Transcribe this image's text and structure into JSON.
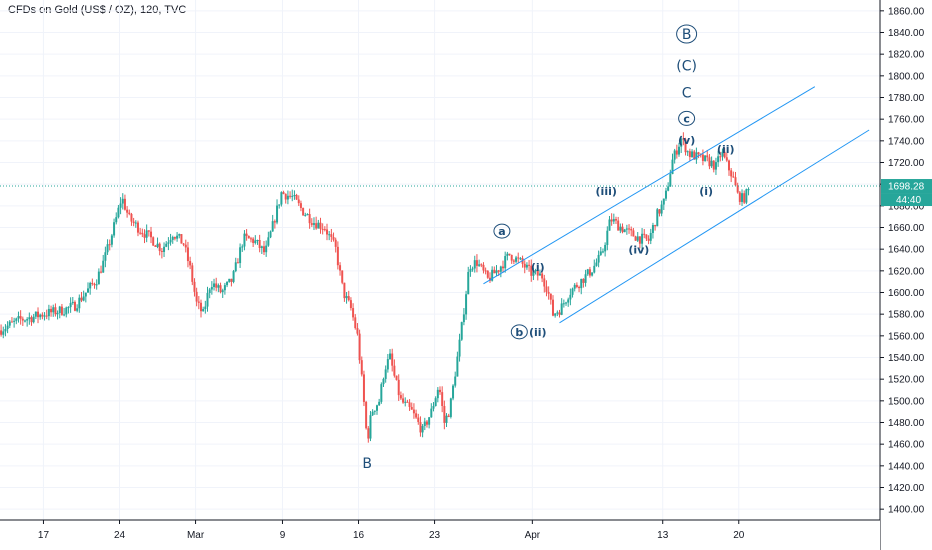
{
  "header": {
    "title": "CFDs on Gold (US$ / OZ), 120, TVC"
  },
  "price_badge": {
    "value": "1698.28",
    "countdown": "44:40",
    "color": "#26a69a"
  },
  "colors": {
    "up": "#26a69a",
    "down": "#ef5350",
    "channel": "#2196f3",
    "label": "#1e4e79",
    "grid": "#f0f3fa"
  },
  "chart_data": {
    "type": "candlestick",
    "title": "CFDs on Gold (US$ / OZ), 120, TVC",
    "ylim": [
      1390,
      1870
    ],
    "y_ticks": [
      1400,
      1420,
      1440,
      1460,
      1480,
      1500,
      1520,
      1540,
      1560,
      1580,
      1600,
      1620,
      1640,
      1660,
      1680,
      1700,
      1720,
      1740,
      1760,
      1780,
      1800,
      1820,
      1840,
      1860
    ],
    "x_ticks": [
      {
        "label": "17",
        "day": 17
      },
      {
        "label": "24",
        "day": 24
      },
      {
        "label": "Mar",
        "day": 31
      },
      {
        "label": "9",
        "day": 39
      },
      {
        "label": "16",
        "day": 46
      },
      {
        "label": "23",
        "day": 53
      },
      {
        "label": "Apr",
        "day": 62
      },
      {
        "label": "13",
        "day": 74
      },
      {
        "label": "20",
        "day": 81
      }
    ],
    "xlim": [
      13,
      94
    ],
    "price_path": [
      [
        13.0,
        1565
      ],
      [
        14.0,
        1570
      ],
      [
        15.0,
        1575
      ],
      [
        16.0,
        1577
      ],
      [
        17.0,
        1580
      ],
      [
        18.0,
        1582
      ],
      [
        19.0,
        1584
      ],
      [
        20.0,
        1588
      ],
      [
        21.0,
        1600
      ],
      [
        22.0,
        1612
      ],
      [
        22.7,
        1630
      ],
      [
        23.3,
        1650
      ],
      [
        23.9,
        1672
      ],
      [
        24.3,
        1688
      ],
      [
        25.0,
        1668
      ],
      [
        26.0,
        1658
      ],
      [
        27.0,
        1650
      ],
      [
        28.0,
        1640
      ],
      [
        29.0,
        1655
      ],
      [
        30.0,
        1645
      ],
      [
        30.6,
        1622
      ],
      [
        31.2,
        1590
      ],
      [
        31.8,
        1580
      ],
      [
        32.5,
        1610
      ],
      [
        33.5,
        1600
      ],
      [
        34.5,
        1612
      ],
      [
        35.5,
        1650
      ],
      [
        36.5,
        1648
      ],
      [
        37.5,
        1636
      ],
      [
        38.3,
        1665
      ],
      [
        39.0,
        1692
      ],
      [
        40.0,
        1688
      ],
      [
        41.0,
        1675
      ],
      [
        42.0,
        1665
      ],
      [
        43.0,
        1660
      ],
      [
        44.0,
        1640
      ],
      [
        44.7,
        1600
      ],
      [
        45.4,
        1585
      ],
      [
        46.0,
        1560
      ],
      [
        46.5,
        1510
      ],
      [
        46.9,
        1462
      ],
      [
        47.3,
        1490
      ],
      [
        48.0,
        1500
      ],
      [
        48.5,
        1530
      ],
      [
        49.0,
        1540
      ],
      [
        49.5,
        1518
      ],
      [
        50.0,
        1500
      ],
      [
        51.0,
        1490
      ],
      [
        52.0,
        1472
      ],
      [
        52.8,
        1490
      ],
      [
        53.5,
        1515
      ],
      [
        54.0,
        1480
      ],
      [
        54.5,
        1492
      ],
      [
        55.5,
        1560
      ],
      [
        56.3,
        1625
      ],
      [
        57.0,
        1628
      ],
      [
        58.0,
        1612
      ],
      [
        59.0,
        1622
      ],
      [
        60.0,
        1635
      ],
      [
        61.0,
        1628
      ],
      [
        62.0,
        1618
      ],
      [
        63.0,
        1615
      ],
      [
        63.5,
        1603
      ],
      [
        64.0,
        1580
      ],
      [
        64.7,
        1585
      ],
      [
        65.5,
        1600
      ],
      [
        66.5,
        1610
      ],
      [
        67.5,
        1620
      ],
      [
        68.5,
        1635
      ],
      [
        69.3,
        1668
      ],
      [
        70.0,
        1662
      ],
      [
        71.0,
        1655
      ],
      [
        72.0,
        1650
      ],
      [
        72.8,
        1648
      ],
      [
        73.6,
        1672
      ],
      [
        74.3,
        1685
      ],
      [
        75.0,
        1722
      ],
      [
        75.8,
        1742
      ],
      [
        76.5,
        1728
      ],
      [
        77.5,
        1724
      ],
      [
        78.5,
        1720
      ],
      [
        79.0,
        1716
      ],
      [
        79.5,
        1730
      ],
      [
        80.0,
        1718
      ],
      [
        80.5,
        1708
      ],
      [
        81.0,
        1690
      ],
      [
        81.5,
        1686
      ],
      [
        82.0,
        1694
      ]
    ],
    "last_price": 1698.28,
    "channel_lines": [
      {
        "name": "upper",
        "x1": 57.5,
        "y1": 1608,
        "x2": 88.0,
        "y2": 1790
      },
      {
        "name": "lower",
        "x1": 64.5,
        "y1": 1572,
        "x2": 93.0,
        "y2": 1750
      }
    ],
    "annotations": [
      {
        "text": "B",
        "x": 76.2,
        "price": 1834,
        "circled": true,
        "size": "big"
      },
      {
        "text": "(C)",
        "x": 76.2,
        "price": 1805,
        "circled": false,
        "size": "big"
      },
      {
        "text": "C",
        "x": 76.2,
        "price": 1780,
        "circled": false,
        "size": "big"
      },
      {
        "text": "c",
        "x": 76.2,
        "price": 1757,
        "circled": true,
        "size": "small"
      },
      {
        "text": "(v)",
        "x": 76.2,
        "price": 1737,
        "circled": false,
        "size": "small"
      },
      {
        "text": "(ii)",
        "x": 79.8,
        "price": 1729,
        "circled": false,
        "size": "small"
      },
      {
        "text": "(iii)",
        "x": 68.8,
        "price": 1690,
        "circled": false,
        "size": "small"
      },
      {
        "text": "(i)",
        "x": 78.0,
        "price": 1690,
        "circled": false,
        "size": "small"
      },
      {
        "text": "a",
        "x": 59.2,
        "price": 1653,
        "circled": true,
        "size": "small"
      },
      {
        "text": "(iv)",
        "x": 71.8,
        "price": 1636,
        "circled": false,
        "size": "small"
      },
      {
        "text": "(i)",
        "x": 62.5,
        "price": 1620,
        "circled": false,
        "size": "small"
      },
      {
        "text": "b",
        "x": 60.8,
        "price": 1560,
        "circled": true,
        "size": "small"
      },
      {
        "text": "(ii)",
        "x": 62.5,
        "price": 1560,
        "circled": false,
        "size": "small"
      },
      {
        "text": "B",
        "x": 46.8,
        "price": 1438,
        "circled": false,
        "size": "big"
      }
    ]
  }
}
